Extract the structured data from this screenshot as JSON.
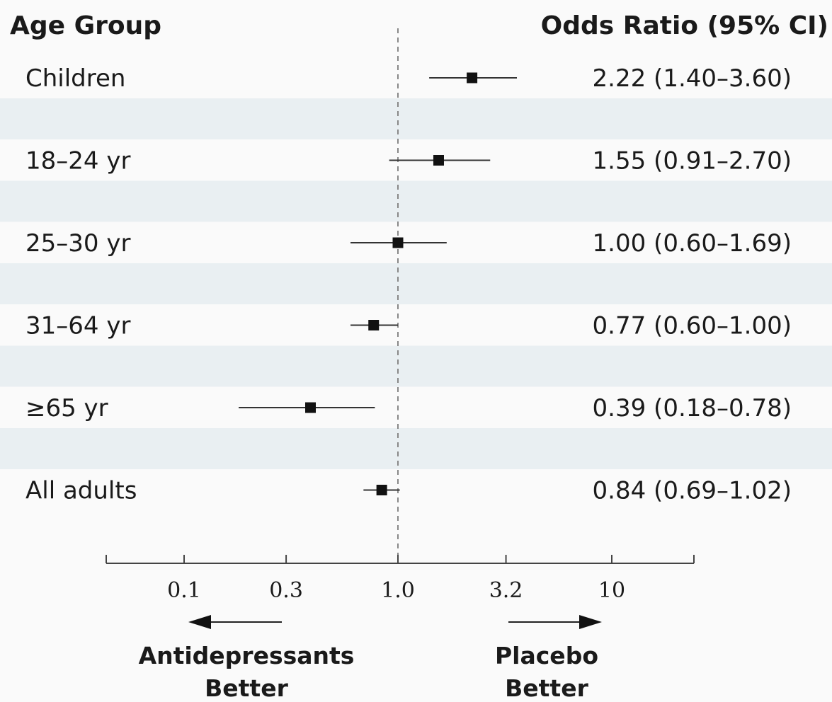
{
  "headers": {
    "left": "Age Group",
    "right": "Odds Ratio (95% CI)"
  },
  "colors": {
    "band": "#e9eff2",
    "background": "#fafafa",
    "marker": "#111111",
    "ci_line": "#333333",
    "reference_line": "#888888"
  },
  "axis": {
    "ticks": [
      {
        "value": 0.1,
        "label": "0.1"
      },
      {
        "value": 0.3,
        "label": "0.3"
      },
      {
        "value": 1.0,
        "label": "1.0"
      },
      {
        "value": 3.2,
        "label": "3.2"
      },
      {
        "value": 10,
        "label": "10"
      }
    ],
    "left_direction": {
      "line1": "Antidepressants",
      "line2": "Better"
    },
    "right_direction": {
      "line1": "Placebo",
      "line2": "Better"
    }
  },
  "chart_data": {
    "type": "forest",
    "scale": "log",
    "xlim": [
      0.032,
      18
    ],
    "reference_value": 1.0,
    "grid": false,
    "rows": [
      {
        "label": "Children",
        "or": 2.22,
        "lo": 1.4,
        "hi": 3.6,
        "text": "2.22 (1.40–3.60)"
      },
      {
        "label": "18–24 yr",
        "or": 1.55,
        "lo": 0.91,
        "hi": 2.7,
        "text": "1.55 (0.91–2.70)"
      },
      {
        "label": "25–30 yr",
        "or": 1.0,
        "lo": 0.6,
        "hi": 1.69,
        "text": "1.00 (0.60–1.69)"
      },
      {
        "label": "31–64 yr",
        "or": 0.77,
        "lo": 0.6,
        "hi": 1.0,
        "text": "0.77 (0.60–1.00)"
      },
      {
        "label": "≥65 yr",
        "or": 0.39,
        "lo": 0.18,
        "hi": 0.78,
        "text": "0.39 (0.18–0.78)"
      },
      {
        "label": "All adults",
        "or": 0.84,
        "lo": 0.69,
        "hi": 1.02,
        "text": "0.84 (0.69–1.02)"
      }
    ]
  }
}
